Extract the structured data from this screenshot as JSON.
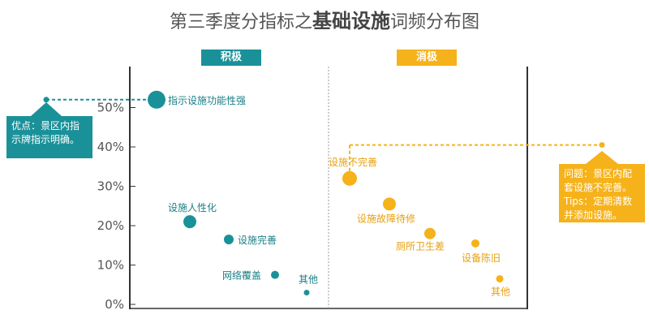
{
  "title": {
    "prefix": "第三季度分指标之",
    "highlight": "基础设施",
    "suffix": "词频分布图"
  },
  "colors": {
    "positive": "#1a9199",
    "negative": "#f6b21a",
    "axis": "#333333",
    "tick_text": "#555555",
    "divider": "#999999"
  },
  "panels": {
    "positive_label": "积极",
    "negative_label": "消极"
  },
  "callouts": {
    "positive": "优点：景区内指示牌指示明确。",
    "negative": "问题：景区内配套设施不完善。Tips：定期清数并添加设施。"
  },
  "chart_data": {
    "type": "scatter",
    "title": "第三季度分指标之基础设施词频分布图",
    "y_ticks": [
      "0%",
      "10%",
      "20%",
      "30%",
      "40%",
      "50%"
    ],
    "ylim": [
      0,
      55
    ],
    "grid": false,
    "series": [
      {
        "name": "积极",
        "points": [
          {
            "label": "指示设施功能性强",
            "value": 52
          },
          {
            "label": "设施人性化",
            "value": 21
          },
          {
            "label": "设施完善",
            "value": 16.5
          },
          {
            "label": "网络覆盖",
            "value": 7.5
          },
          {
            "label": "其他",
            "value": 3
          }
        ]
      },
      {
        "name": "消极",
        "points": [
          {
            "label": "设施不完善",
            "value": 32
          },
          {
            "label": "设施故障待修",
            "value": 25.5
          },
          {
            "label": "厕所卫生差",
            "value": 18
          },
          {
            "label": "设备陈旧",
            "value": 15.5
          },
          {
            "label": "其他",
            "value": 6.5
          }
        ]
      }
    ]
  }
}
